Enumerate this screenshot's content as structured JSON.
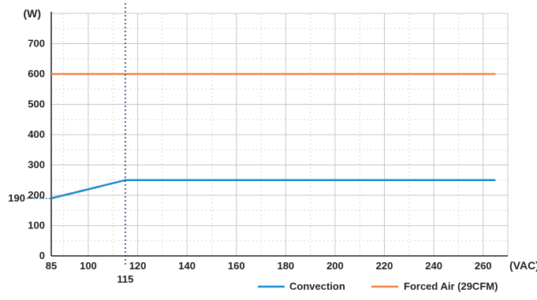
{
  "chart_data": {
    "type": "line",
    "xlabel": "(VAC)",
    "ylabel": "(W)",
    "xlim": [
      85,
      270
    ],
    "ylim": [
      0,
      800
    ],
    "x_ticks": [
      85,
      100,
      120,
      140,
      160,
      180,
      200,
      220,
      240,
      260
    ],
    "y_ticks": [
      0,
      100,
      200,
      300,
      400,
      500,
      600,
      700
    ],
    "grid": true,
    "legend_position": "bottom-right",
    "series": [
      {
        "name": "Convection",
        "color": "#1f8ccc",
        "points": [
          [
            85,
            190
          ],
          [
            115,
            250
          ],
          [
            265,
            250
          ]
        ]
      },
      {
        "name": "Forced Air (29CFM)",
        "color": "#ee8544",
        "points": [
          [
            85,
            600
          ],
          [
            265,
            600
          ]
        ]
      }
    ],
    "annotations": {
      "vertical_marker": {
        "x": 115,
        "label": "115",
        "color": "#1f3a6d"
      },
      "horizontal_marker": {
        "y": 190,
        "label": "190",
        "color": "#1f8ccc"
      }
    }
  }
}
